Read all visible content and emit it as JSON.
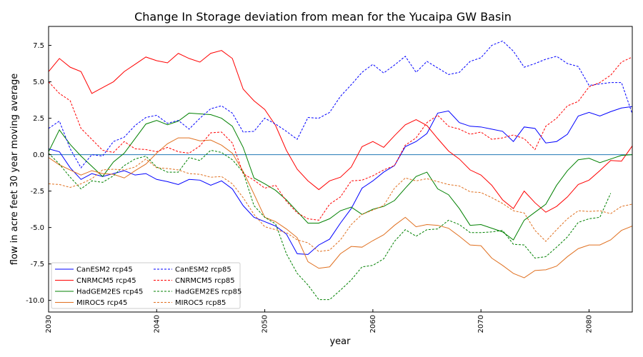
{
  "chart_data": {
    "type": "line",
    "title": "Change In Storage deviation from mean for the Yucaipa GW Basin",
    "xlabel": "year",
    "ylabel": "flow in acre feet 30 year moving average",
    "xlim": [
      2030,
      2084
    ],
    "ylim": [
      -10.8,
      8.8
    ],
    "xticks": [
      2030,
      2040,
      2050,
      2060,
      2070,
      2080
    ],
    "yticks": [
      -10.0,
      -7.5,
      -5.0,
      -2.5,
      0.0,
      2.5,
      5.0,
      7.5
    ],
    "ytick_labels": [
      "-10.0",
      "-7.5",
      "-5.0",
      "-2.5",
      "0.0",
      "2.5",
      "5.0",
      "7.5"
    ],
    "x_tick_rotation": "vertical",
    "grid": false,
    "legend_placement": "lower-left",
    "legend_columns": 2,
    "zero_line": {
      "y": 0.0,
      "color": "#1f77b4"
    },
    "series": [
      {
        "name": "CanESM2 rcp45",
        "color": "#0000ff",
        "linestyle": "solid",
        "x_start": 2030,
        "values": [
          0.4,
          0.2,
          -0.9,
          -1.7,
          -1.3,
          -1.5,
          -1.3,
          -1.1,
          -1.4,
          -1.3,
          -1.7,
          -1.85,
          -2.05,
          -1.7,
          -1.75,
          -2.1,
          -1.8,
          -2.35,
          -3.5,
          -4.3,
          -4.6,
          -4.9,
          -5.45,
          -6.8,
          -6.85,
          -6.2,
          -5.8,
          -4.7,
          -3.7,
          -2.3,
          -1.8,
          -1.2,
          -0.75,
          0.55,
          0.9,
          1.45,
          2.85,
          3.0,
          2.2,
          1.95,
          1.9,
          1.75,
          1.6,
          0.9,
          1.9,
          1.8,
          0.8,
          0.9,
          1.4,
          2.65,
          2.9,
          2.65,
          2.95,
          3.2,
          3.3
        ]
      },
      {
        "name": "CNRMCM5 rcp45",
        "color": "#ff0000",
        "linestyle": "solid",
        "x_start": 2030,
        "values": [
          5.7,
          6.6,
          6.0,
          5.7,
          4.2,
          4.6,
          5.0,
          5.7,
          6.2,
          6.7,
          6.45,
          6.3,
          6.95,
          6.6,
          6.35,
          6.95,
          7.15,
          6.6,
          4.5,
          3.7,
          3.1,
          2.0,
          0.3,
          -1.0,
          -1.8,
          -2.4,
          -1.8,
          -1.55,
          -0.85,
          0.55,
          0.9,
          0.5,
          1.3,
          2.05,
          2.4,
          2.0,
          1.1,
          0.25,
          -0.3,
          -1.05,
          -1.4,
          -2.1,
          -3.1,
          -3.7,
          -2.5,
          -3.3,
          -3.95,
          -3.55,
          -2.9,
          -2.05,
          -1.75,
          -1.1,
          -0.4,
          -0.45,
          0.6
        ]
      },
      {
        "name": "HadGEM2ES rcp45",
        "color": "#008000",
        "linestyle": "solid",
        "x_start": 2030,
        "values": [
          0.2,
          1.7,
          0.7,
          -0.1,
          -0.8,
          -1.5,
          -0.5,
          0.1,
          1.1,
          2.1,
          2.35,
          2.05,
          2.3,
          2.85,
          2.8,
          2.75,
          2.5,
          1.95,
          0.5,
          -1.6,
          -2.0,
          -2.45,
          -3.1,
          -3.9,
          -4.7,
          -4.7,
          -4.4,
          -3.85,
          -3.6,
          -4.1,
          -3.75,
          -3.55,
          -3.15,
          -2.3,
          -1.5,
          -1.2,
          -2.35,
          -2.75,
          -3.7,
          -4.85,
          -4.8,
          -5.05,
          -5.3,
          -5.85,
          -4.5,
          -3.95,
          -3.4,
          -2.1,
          -1.1,
          -0.35,
          -0.25,
          -0.55,
          -0.3,
          -0.05,
          0.0
        ]
      },
      {
        "name": "MIROC5 rcp45",
        "color": "#e07020",
        "linestyle": "solid",
        "x_start": 2030,
        "values": [
          -0.2,
          -0.7,
          -1.05,
          -1.4,
          -1.1,
          -1.3,
          -1.35,
          -1.6,
          -1.1,
          -0.65,
          0.1,
          0.75,
          1.15,
          1.15,
          0.95,
          1.0,
          0.65,
          0.1,
          -1.15,
          -2.7,
          -4.3,
          -4.6,
          -5.1,
          -5.7,
          -7.35,
          -7.8,
          -7.7,
          -6.8,
          -6.3,
          -6.35,
          -5.9,
          -5.5,
          -4.85,
          -4.3,
          -4.95,
          -4.8,
          -4.85,
          -5.05,
          -5.6,
          -6.2,
          -6.25,
          -7.1,
          -7.6,
          -8.15,
          -8.45,
          -7.95,
          -7.9,
          -7.65,
          -7.0,
          -6.45,
          -6.2,
          -6.2,
          -5.85,
          -5.2,
          -4.9
        ]
      },
      {
        "name": "CanESM2 rcp85",
        "color": "#0000ff",
        "linestyle": "dashed",
        "x_start": 2030,
        "values": [
          1.8,
          2.3,
          0.4,
          -0.9,
          0.0,
          -0.1,
          0.9,
          1.2,
          2.0,
          2.55,
          2.7,
          2.15,
          2.35,
          1.75,
          2.5,
          3.15,
          3.35,
          2.85,
          1.55,
          1.6,
          2.5,
          2.1,
          1.6,
          1.05,
          2.55,
          2.5,
          2.9,
          4.0,
          4.8,
          5.65,
          6.2,
          5.6,
          6.15,
          6.75,
          5.65,
          6.4,
          5.95,
          5.5,
          5.65,
          6.4,
          6.65,
          7.5,
          7.8,
          7.1,
          6.0,
          6.25,
          6.55,
          6.75,
          6.25,
          6.05,
          4.75,
          4.85,
          4.95,
          4.95,
          2.8
        ]
      },
      {
        "name": "CNRMCM5 rcp85",
        "color": "#ff0000",
        "linestyle": "dashed",
        "x_start": 2030,
        "values": [
          5.0,
          4.2,
          3.7,
          1.8,
          1.05,
          0.3,
          0.15,
          0.9,
          0.4,
          0.35,
          0.2,
          0.5,
          0.2,
          0.1,
          0.6,
          1.5,
          1.55,
          0.8,
          -1.3,
          -1.75,
          -2.3,
          -2.1,
          -3.2,
          -4.0,
          -4.4,
          -4.5,
          -3.4,
          -2.9,
          -1.8,
          -1.75,
          -1.45,
          -1.05,
          -0.75,
          0.65,
          1.15,
          2.2,
          2.7,
          1.95,
          1.75,
          1.4,
          1.55,
          1.05,
          1.15,
          1.35,
          1.1,
          0.35,
          1.95,
          2.5,
          3.35,
          3.65,
          4.65,
          4.95,
          5.45,
          6.35,
          6.7
        ]
      },
      {
        "name": "HadGEM2ES rcp85",
        "color": "#008000",
        "linestyle": "dashed",
        "x_start": 2030,
        "values": [
          0.1,
          -0.65,
          -1.55,
          -2.35,
          -1.8,
          -1.9,
          -1.45,
          -0.75,
          -0.3,
          -0.1,
          -0.85,
          -1.2,
          -1.2,
          -0.2,
          -0.4,
          0.3,
          0.15,
          -0.35,
          -1.2,
          -3.5,
          -4.3,
          -4.75,
          -6.8,
          -8.15,
          -8.95,
          -9.95,
          -9.95,
          -9.3,
          -8.6,
          -7.7,
          -7.6,
          -7.15,
          -5.95,
          -5.15,
          -5.6,
          -5.15,
          -5.1,
          -4.5,
          -4.8,
          -5.35,
          -5.35,
          -5.3,
          -5.2,
          -6.15,
          -6.2,
          -7.1,
          -7.0,
          -6.35,
          -5.65,
          -4.65,
          -4.4,
          -4.3,
          -2.65
        ]
      },
      {
        "name": "MIROC5 rcp85",
        "color": "#e07020",
        "linestyle": "dashed",
        "x_start": 2030,
        "values": [
          -2.0,
          -2.05,
          -2.25,
          -2.0,
          -1.65,
          -1.05,
          -1.0,
          -1.05,
          -0.85,
          -0.3,
          -0.9,
          -0.95,
          -1.05,
          -1.3,
          -1.35,
          -1.55,
          -1.5,
          -2.0,
          -2.95,
          -4.1,
          -4.95,
          -5.15,
          -5.35,
          -5.85,
          -6.05,
          -6.65,
          -6.55,
          -5.85,
          -4.8,
          -4.1,
          -3.8,
          -3.5,
          -2.3,
          -1.6,
          -1.8,
          -1.65,
          -1.85,
          -2.05,
          -2.15,
          -2.55,
          -2.6,
          -2.95,
          -3.35,
          -3.85,
          -4.0,
          -5.2,
          -5.95,
          -5.15,
          -4.4,
          -3.85,
          -3.9,
          -3.85,
          -4.05,
          -3.55,
          -3.4
        ]
      }
    ]
  }
}
